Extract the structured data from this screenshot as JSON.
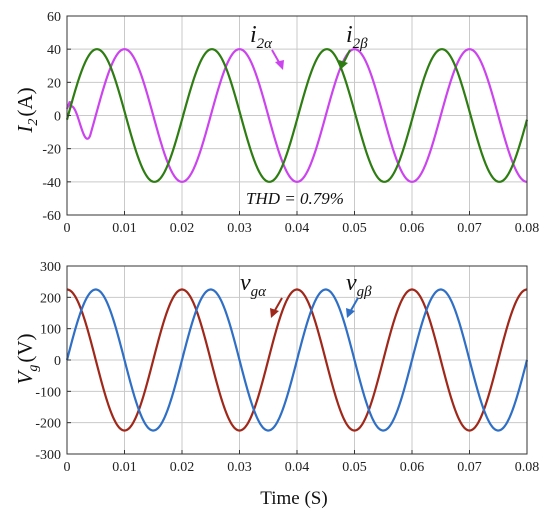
{
  "chart_data": [
    {
      "type": "line",
      "ylabel_main": "I",
      "ylabel_sub": "2",
      "ylabel_unit": "(A)",
      "xlim": [
        0,
        0.08
      ],
      "ylim": [
        -60,
        60
      ],
      "x_ticks": [
        "0",
        "0.01",
        "0.02",
        "0.03",
        "0.04",
        "0.05",
        "0.06",
        "0.07",
        "0.08"
      ],
      "y_ticks": [
        "60",
        "40",
        "20",
        "0",
        "-20",
        "-40",
        "-60"
      ],
      "grid": true,
      "series": [
        {
          "name_main": "i",
          "name_sub": "2α",
          "amplitude": 40,
          "frequency_hz": 50,
          "waveform": "i_alpha",
          "color": "#cc44ee"
        },
        {
          "name_main": "i",
          "name_sub": "2β",
          "amplitude": 40,
          "frequency_hz": 50,
          "waveform": "i_beta",
          "color": "#2e7d12"
        }
      ],
      "annotation": "THD = 0.79%"
    },
    {
      "type": "line",
      "ylabel_main": "V",
      "ylabel_sub": "g",
      "ylabel_unit": "(V)",
      "xlim": [
        0,
        0.08
      ],
      "ylim": [
        -300,
        300
      ],
      "x_ticks": [
        "0",
        "0.01",
        "0.02",
        "0.03",
        "0.04",
        "0.05",
        "0.06",
        "0.07",
        "0.08"
      ],
      "y_ticks": [
        "300",
        "200",
        "100",
        "0",
        "-100",
        "-200",
        "-300"
      ],
      "grid": true,
      "series": [
        {
          "name_main": "v",
          "name_sub": "gα",
          "amplitude": 225,
          "frequency_hz": 50,
          "waveform": "v_alpha",
          "color": "#a0281a"
        },
        {
          "name_main": "v",
          "name_sub": "gβ",
          "amplitude": 225,
          "frequency_hz": 50,
          "waveform": "v_beta",
          "color": "#2f6fc6"
        }
      ]
    }
  ],
  "xlabel": "Time (S)"
}
